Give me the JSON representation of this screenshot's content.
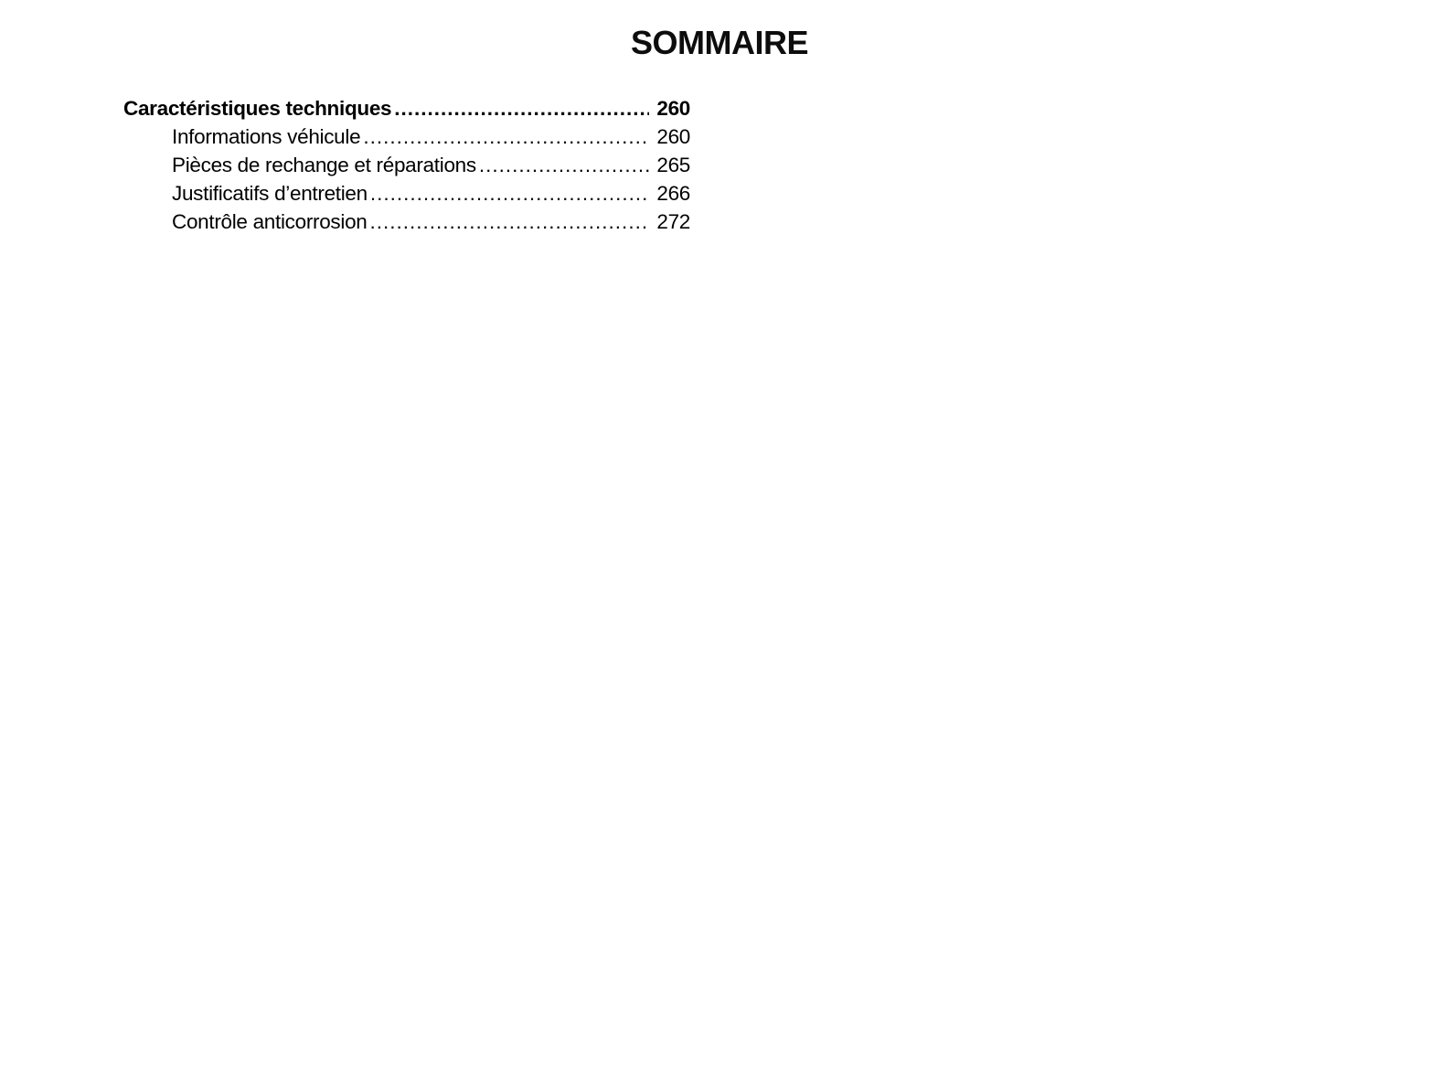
{
  "title": "SOMMAIRE",
  "toc": {
    "entries": [
      {
        "label": "Caractéristiques techniques",
        "page": "260"
      },
      {
        "label": "Informations véhicule",
        "page": "260"
      },
      {
        "label": "Pièces de rechange et réparations",
        "page": "265"
      },
      {
        "label": "Justificatifs d’entretien",
        "page": "266"
      },
      {
        "label": "Contrôle anticorrosion",
        "page": "272"
      }
    ]
  }
}
